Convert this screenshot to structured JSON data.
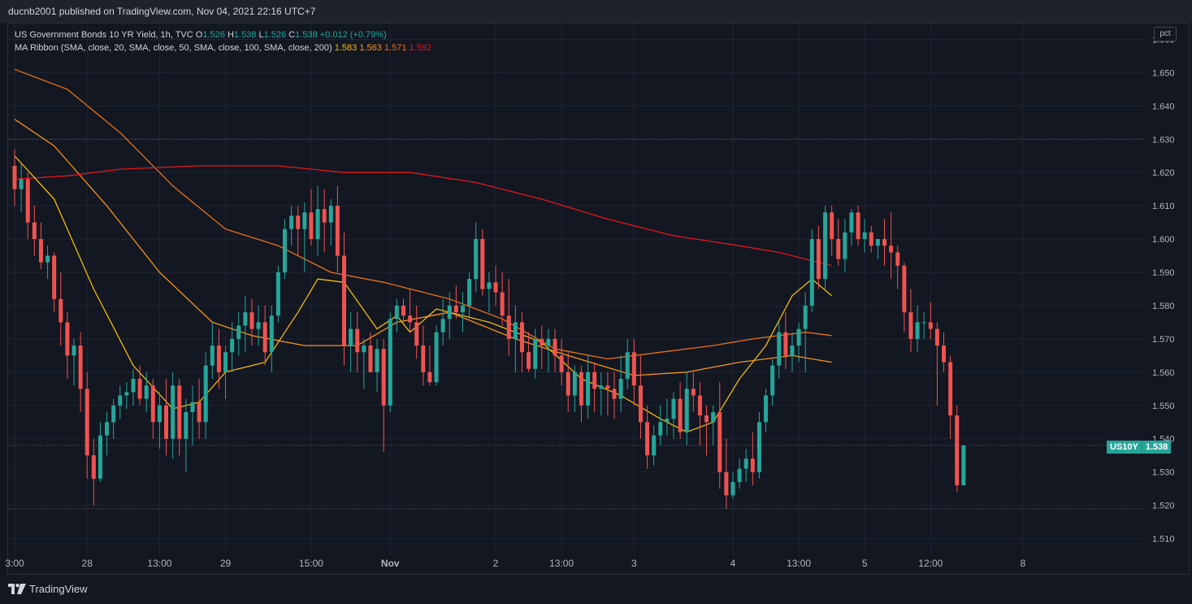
{
  "header": {
    "publish_text": "ducnb2001 published on TradingView.com, Nov 04, 2021 22:16 UTC+7"
  },
  "legend": {
    "symbol_line": "US Government Bonds 10 YR Yield, 1h, TVC",
    "open_key": "O",
    "open": "1.526",
    "high_key": "H",
    "high": "1.538",
    "low_key": "L",
    "low": "1.526",
    "close_key": "C",
    "close": "1.538",
    "change": "+0.012 (+0.79%)",
    "ma_label": "MA Ribbon (SMA, close, 20, SMA, close, 50, SMA, close, 100, SMA, close, 200)",
    "ma_values": [
      "1.583",
      "1.563",
      "1.571",
      "1.592"
    ]
  },
  "unit_badge": "pct",
  "price_tag": {
    "symbol": "US10Y",
    "value": "1.538"
  },
  "footer": {
    "brand": "TradingView"
  },
  "colors": {
    "up": "#26a69a",
    "down": "#ef5350",
    "ma20": "#f2b90c",
    "ma50": "#f7931a",
    "ma100": "#e8701a",
    "ma200": "#e3161b",
    "background": "#131722",
    "grid": "#1f2433"
  },
  "chart_data": {
    "type": "candlestick",
    "title": "US Government Bonds 10 YR Yield, 1h, TVC",
    "ylim": [
      1.505,
      1.665
    ],
    "y_ticks": [
      "1.510",
      "1.520",
      "1.530",
      "1.540",
      "1.550",
      "1.560",
      "1.570",
      "1.580",
      "1.590",
      "1.600",
      "1.610",
      "1.620",
      "1.630",
      "1.640",
      "1.650",
      "1.660"
    ],
    "x_tick_labels": [
      "3:00",
      "28",
      "13:00",
      "29",
      "15:00",
      "Nov",
      "2",
      "13:00",
      "3",
      "4",
      "13:00",
      "5",
      "12:00",
      "8"
    ],
    "x_tick_bars": [
      0,
      11,
      22,
      32,
      45,
      57,
      73,
      83,
      94,
      109,
      119,
      129,
      139,
      153
    ],
    "reference_lines": [
      1.63,
      1.538,
      1.519
    ],
    "candles": [
      [
        1.622,
        1.627,
        1.61,
        1.615
      ],
      [
        1.615,
        1.623,
        1.608,
        1.618
      ],
      [
        1.618,
        1.62,
        1.6,
        1.605
      ],
      [
        1.605,
        1.61,
        1.595,
        1.6
      ],
      [
        1.6,
        1.605,
        1.591,
        1.593
      ],
      [
        1.593,
        1.598,
        1.588,
        1.595
      ],
      [
        1.595,
        1.596,
        1.578,
        1.582
      ],
      [
        1.582,
        1.59,
        1.568,
        1.575
      ],
      [
        1.575,
        1.578,
        1.558,
        1.565
      ],
      [
        1.565,
        1.57,
        1.556,
        1.568
      ],
      [
        1.568,
        1.572,
        1.548,
        1.555
      ],
      [
        1.555,
        1.56,
        1.528,
        1.535
      ],
      [
        1.535,
        1.54,
        1.52,
        1.528
      ],
      [
        1.528,
        1.545,
        1.527,
        1.541
      ],
      [
        1.541,
        1.548,
        1.535,
        1.545
      ],
      [
        1.545,
        1.552,
        1.54,
        1.55
      ],
      [
        1.55,
        1.556,
        1.546,
        1.553
      ],
      [
        1.553,
        1.557,
        1.549,
        1.554
      ],
      [
        1.554,
        1.561,
        1.55,
        1.558
      ],
      [
        1.558,
        1.562,
        1.55,
        1.552
      ],
      [
        1.552,
        1.56,
        1.548,
        1.556
      ],
      [
        1.556,
        1.558,
        1.54,
        1.545
      ],
      [
        1.545,
        1.554,
        1.537,
        1.55
      ],
      [
        1.55,
        1.558,
        1.535,
        1.54
      ],
      [
        1.54,
        1.56,
        1.534,
        1.556
      ],
      [
        1.556,
        1.558,
        1.535,
        1.54
      ],
      [
        1.54,
        1.552,
        1.53,
        1.548
      ],
      [
        1.548,
        1.556,
        1.538,
        1.551
      ],
      [
        1.551,
        1.558,
        1.54,
        1.545
      ],
      [
        1.545,
        1.566,
        1.54,
        1.562
      ],
      [
        1.562,
        1.575,
        1.558,
        1.568
      ],
      [
        1.568,
        1.573,
        1.555,
        1.56
      ],
      [
        1.56,
        1.568,
        1.552,
        1.566
      ],
      [
        1.566,
        1.575,
        1.56,
        1.57
      ],
      [
        1.57,
        1.578,
        1.565,
        1.574
      ],
      [
        1.574,
        1.583,
        1.566,
        1.578
      ],
      [
        1.578,
        1.582,
        1.568,
        1.573
      ],
      [
        1.573,
        1.58,
        1.568,
        1.575
      ],
      [
        1.575,
        1.58,
        1.562,
        1.566
      ],
      [
        1.566,
        1.58,
        1.56,
        1.577
      ],
      [
        1.577,
        1.592,
        1.575,
        1.59
      ],
      [
        1.59,
        1.606,
        1.588,
        1.603
      ],
      [
        1.603,
        1.61,
        1.598,
        1.607
      ],
      [
        1.607,
        1.61,
        1.595,
        1.603
      ],
      [
        1.603,
        1.611,
        1.59,
        1.608
      ],
      [
        1.608,
        1.615,
        1.598,
        1.6
      ],
      [
        1.6,
        1.616,
        1.595,
        1.609
      ],
      [
        1.609,
        1.615,
        1.596,
        1.605
      ],
      [
        1.605,
        1.612,
        1.598,
        1.61
      ],
      [
        1.61,
        1.616,
        1.59,
        1.595
      ],
      [
        1.595,
        1.602,
        1.562,
        1.568
      ],
      [
        1.568,
        1.578,
        1.56,
        1.573
      ],
      [
        1.573,
        1.578,
        1.56,
        1.566
      ],
      [
        1.566,
        1.57,
        1.555,
        1.568
      ],
      [
        1.568,
        1.572,
        1.56,
        1.56
      ],
      [
        1.56,
        1.57,
        1.554,
        1.567
      ],
      [
        1.567,
        1.57,
        1.536,
        1.55
      ],
      [
        1.55,
        1.578,
        1.548,
        1.576
      ],
      [
        1.576,
        1.582,
        1.572,
        1.58
      ],
      [
        1.58,
        1.582,
        1.575,
        1.577
      ],
      [
        1.577,
        1.585,
        1.572,
        1.575
      ],
      [
        1.575,
        1.58,
        1.564,
        1.568
      ],
      [
        1.568,
        1.574,
        1.556,
        1.56
      ],
      [
        1.56,
        1.568,
        1.556,
        1.557
      ],
      [
        1.557,
        1.574,
        1.556,
        1.572
      ],
      [
        1.572,
        1.582,
        1.568,
        1.576
      ],
      [
        1.576,
        1.584,
        1.57,
        1.58
      ],
      [
        1.58,
        1.586,
        1.576,
        1.578
      ],
      [
        1.578,
        1.584,
        1.572,
        1.58
      ],
      [
        1.58,
        1.59,
        1.576,
        1.588
      ],
      [
        1.588,
        1.605,
        1.584,
        1.6
      ],
      [
        1.6,
        1.603,
        1.583,
        1.585
      ],
      [
        1.585,
        1.59,
        1.578,
        1.587
      ],
      [
        1.587,
        1.592,
        1.58,
        1.584
      ],
      [
        1.584,
        1.59,
        1.574,
        1.577
      ],
      [
        1.577,
        1.588,
        1.565,
        1.57
      ],
      [
        1.57,
        1.58,
        1.56,
        1.575
      ],
      [
        1.575,
        1.578,
        1.56,
        1.566
      ],
      [
        1.566,
        1.572,
        1.56,
        1.561
      ],
      [
        1.561,
        1.573,
        1.558,
        1.57
      ],
      [
        1.57,
        1.574,
        1.561,
        1.568
      ],
      [
        1.568,
        1.573,
        1.56,
        1.57
      ],
      [
        1.57,
        1.573,
        1.56,
        1.565
      ],
      [
        1.565,
        1.57,
        1.556,
        1.56
      ],
      [
        1.56,
        1.566,
        1.548,
        1.553
      ],
      [
        1.553,
        1.562,
        1.548,
        1.56
      ],
      [
        1.56,
        1.562,
        1.545,
        1.55
      ],
      [
        1.55,
        1.565,
        1.546,
        1.56
      ],
      [
        1.56,
        1.563,
        1.548,
        1.555
      ],
      [
        1.555,
        1.56,
        1.547,
        1.556
      ],
      [
        1.556,
        1.56,
        1.547,
        1.555
      ],
      [
        1.555,
        1.56,
        1.546,
        1.552
      ],
      [
        1.552,
        1.565,
        1.548,
        1.558
      ],
      [
        1.558,
        1.57,
        1.555,
        1.566
      ],
      [
        1.566,
        1.57,
        1.55,
        1.556
      ],
      [
        1.556,
        1.565,
        1.54,
        1.545
      ],
      [
        1.545,
        1.55,
        1.531,
        1.535
      ],
      [
        1.535,
        1.544,
        1.532,
        1.541
      ],
      [
        1.541,
        1.55,
        1.538,
        1.545
      ],
      [
        1.545,
        1.552,
        1.541,
        1.546
      ],
      [
        1.546,
        1.554,
        1.54,
        1.552
      ],
      [
        1.552,
        1.557,
        1.54,
        1.542
      ],
      [
        1.542,
        1.56,
        1.538,
        1.555
      ],
      [
        1.555,
        1.56,
        1.548,
        1.553
      ],
      [
        1.553,
        1.557,
        1.538,
        1.547
      ],
      [
        1.547,
        1.55,
        1.535,
        1.545
      ],
      [
        1.545,
        1.55,
        1.538,
        1.548
      ],
      [
        1.548,
        1.557,
        1.525,
        1.53
      ],
      [
        1.53,
        1.54,
        1.519,
        1.523
      ],
      [
        1.523,
        1.53,
        1.522,
        1.527
      ],
      [
        1.527,
        1.534,
        1.525,
        1.531
      ],
      [
        1.531,
        1.537,
        1.527,
        1.534
      ],
      [
        1.534,
        1.542,
        1.526,
        1.53
      ],
      [
        1.53,
        1.548,
        1.528,
        1.545
      ],
      [
        1.545,
        1.555,
        1.542,
        1.553
      ],
      [
        1.553,
        1.564,
        1.55,
        1.562
      ],
      [
        1.562,
        1.575,
        1.558,
        1.572
      ],
      [
        1.572,
        1.578,
        1.561,
        1.565
      ],
      [
        1.565,
        1.572,
        1.56,
        1.568
      ],
      [
        1.568,
        1.575,
        1.563,
        1.573
      ],
      [
        1.573,
        1.584,
        1.56,
        1.58
      ],
      [
        1.58,
        1.603,
        1.578,
        1.6
      ],
      [
        1.6,
        1.604,
        1.585,
        1.588
      ],
      [
        1.588,
        1.61,
        1.585,
        1.608
      ],
      [
        1.608,
        1.61,
        1.595,
        1.6
      ],
      [
        1.6,
        1.606,
        1.592,
        1.594
      ],
      [
        1.594,
        1.606,
        1.59,
        1.602
      ],
      [
        1.602,
        1.609,
        1.598,
        1.608
      ],
      [
        1.608,
        1.61,
        1.598,
        1.6
      ],
      [
        1.6,
        1.606,
        1.596,
        1.602
      ],
      [
        1.602,
        1.604,
        1.596,
        1.598
      ],
      [
        1.598,
        1.6,
        1.594,
        1.6
      ],
      [
        1.6,
        1.606,
        1.592,
        1.598
      ],
      [
        1.598,
        1.608,
        1.588,
        1.596
      ],
      [
        1.596,
        1.598,
        1.585,
        1.592
      ],
      [
        1.592,
        1.593,
        1.572,
        1.578
      ],
      [
        1.578,
        1.585,
        1.566,
        1.57
      ],
      [
        1.57,
        1.58,
        1.566,
        1.575
      ],
      [
        1.575,
        1.578,
        1.57,
        1.575
      ],
      [
        1.575,
        1.581,
        1.57,
        1.573
      ],
      [
        1.573,
        1.575,
        1.55,
        1.568
      ],
      [
        1.568,
        1.572,
        1.56,
        1.563
      ],
      [
        1.563,
        1.565,
        1.54,
        1.547
      ],
      [
        1.547,
        1.55,
        1.524,
        1.526
      ],
      [
        1.526,
        1.538,
        1.526,
        1.538
      ]
    ],
    "moving_averages": [
      {
        "name": "MA 20",
        "period": 20,
        "color": "#f2b90c",
        "last": 1.583
      },
      {
        "name": "MA 50",
        "period": 50,
        "color": "#f7931a",
        "last": 1.563
      },
      {
        "name": "MA 100",
        "period": 100,
        "color": "#e8701a",
        "last": 1.571
      },
      {
        "name": "MA 200",
        "period": 200,
        "color": "#e3161b",
        "last": 1.592
      }
    ],
    "ma_curves": {
      "ma20": [
        [
          0,
          1.625
        ],
        [
          6,
          1.612
        ],
        [
          12,
          1.585
        ],
        [
          18,
          1.562
        ],
        [
          24,
          1.549
        ],
        [
          28,
          1.551
        ],
        [
          32,
          1.56
        ],
        [
          38,
          1.563
        ],
        [
          43,
          1.578
        ],
        [
          46,
          1.588
        ],
        [
          50,
          1.587
        ],
        [
          55,
          1.573
        ],
        [
          58,
          1.577
        ],
        [
          60,
          1.572
        ],
        [
          64,
          1.579
        ],
        [
          68,
          1.577
        ],
        [
          72,
          1.575
        ],
        [
          80,
          1.569
        ],
        [
          86,
          1.558
        ],
        [
          92,
          1.553
        ],
        [
          98,
          1.546
        ],
        [
          102,
          1.542
        ],
        [
          106,
          1.545
        ],
        [
          110,
          1.558
        ],
        [
          114,
          1.568
        ],
        [
          118,
          1.583
        ],
        [
          121,
          1.588
        ],
        [
          124,
          1.583
        ]
      ],
      "ma50": [
        [
          0,
          1.636
        ],
        [
          6,
          1.628
        ],
        [
          14,
          1.61
        ],
        [
          22,
          1.59
        ],
        [
          30,
          1.575
        ],
        [
          36,
          1.571
        ],
        [
          44,
          1.568
        ],
        [
          52,
          1.568
        ],
        [
          58,
          1.575
        ],
        [
          66,
          1.578
        ],
        [
          76,
          1.57
        ],
        [
          84,
          1.565
        ],
        [
          94,
          1.559
        ],
        [
          102,
          1.56
        ],
        [
          110,
          1.563
        ],
        [
          118,
          1.565
        ],
        [
          124,
          1.563
        ]
      ],
      "ma100": [
        [
          0,
          1.651
        ],
        [
          8,
          1.645
        ],
        [
          16,
          1.632
        ],
        [
          24,
          1.616
        ],
        [
          32,
          1.603
        ],
        [
          40,
          1.598
        ],
        [
          48,
          1.59
        ],
        [
          56,
          1.587
        ],
        [
          66,
          1.582
        ],
        [
          74,
          1.576
        ],
        [
          82,
          1.567
        ],
        [
          90,
          1.564
        ],
        [
          98,
          1.566
        ],
        [
          106,
          1.568
        ],
        [
          112,
          1.57
        ],
        [
          120,
          1.572
        ],
        [
          124,
          1.571
        ]
      ],
      "ma200": [
        [
          0,
          1.618
        ],
        [
          8,
          1.619
        ],
        [
          16,
          1.621
        ],
        [
          28,
          1.622
        ],
        [
          40,
          1.622
        ],
        [
          50,
          1.62
        ],
        [
          60,
          1.62
        ],
        [
          70,
          1.617
        ],
        [
          80,
          1.612
        ],
        [
          90,
          1.606
        ],
        [
          100,
          1.601
        ],
        [
          110,
          1.598
        ],
        [
          116,
          1.596
        ],
        [
          124,
          1.592
        ]
      ]
    }
  }
}
